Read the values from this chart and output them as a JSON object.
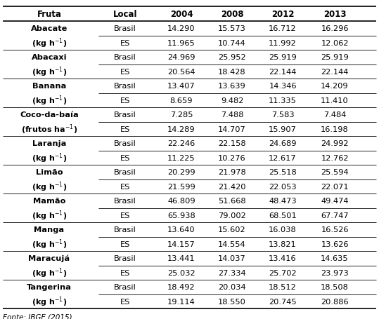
{
  "columns": [
    "Fruta",
    "Local",
    "2004",
    "2008",
    "2012",
    "2013"
  ],
  "fruits": [
    {
      "name": "Abacate",
      "unit": "(kg h-1)",
      "brasil": [
        "14.290",
        "15.573",
        "16.712",
        "16.296"
      ],
      "es": [
        "11.965",
        "10.744",
        "11.992",
        "12.062"
      ]
    },
    {
      "name": "Abacaxi",
      "unit": "(kg h-1)",
      "brasil": [
        "24.969",
        "25.952",
        "25.919",
        "25.919"
      ],
      "es": [
        "20.564",
        "18.428",
        "22.144",
        "22.144"
      ]
    },
    {
      "name": "Banana",
      "unit": "(kg h-1)",
      "brasil": [
        "13.407",
        "13.639",
        "14.346",
        "14.209"
      ],
      "es": [
        "8.659",
        "9.482",
        "11.335",
        "11.410"
      ]
    },
    {
      "name": "Coco-da-baía",
      "unit": "(frutos ha-1)",
      "brasil": [
        "7.285",
        "7.488",
        "7.583",
        "7.484"
      ],
      "es": [
        "14.289",
        "14.707",
        "15.907",
        "16.198"
      ]
    },
    {
      "name": "Laranja",
      "unit": "(kg h-1)",
      "brasil": [
        "22.246",
        "22.158",
        "24.689",
        "24.992"
      ],
      "es": [
        "11.225",
        "10.276",
        "12.617",
        "12.762"
      ]
    },
    {
      "name": "Limão",
      "unit": "(kg h-1)",
      "brasil": [
        "20.299",
        "21.978",
        "25.518",
        "25.594"
      ],
      "es": [
        "21.599",
        "21.420",
        "22.053",
        "22.071"
      ]
    },
    {
      "name": "Mamão",
      "unit": "(kg h-1)",
      "brasil": [
        "46.809",
        "51.668",
        "48.473",
        "49.474"
      ],
      "es": [
        "65.938",
        "79.002",
        "68.501",
        "67.747"
      ]
    },
    {
      "name": "Manga",
      "unit": "(kg h-1)",
      "brasil": [
        "13.640",
        "15.602",
        "16.038",
        "16.526"
      ],
      "es": [
        "14.157",
        "14.554",
        "13.821",
        "13.626"
      ]
    },
    {
      "name": "Maracujá",
      "unit": "(kg h-1)",
      "brasil": [
        "13.441",
        "14.037",
        "13.416",
        "14.635"
      ],
      "es": [
        "25.032",
        "27.334",
        "25.702",
        "23.973"
      ]
    },
    {
      "name": "Tangerina",
      "unit": "(kg h-1)",
      "brasil": [
        "18.492",
        "20.034",
        "18.512",
        "18.508"
      ],
      "es": [
        "19.114",
        "18.550",
        "20.745",
        "20.886"
      ]
    }
  ],
  "footer": "Fonte: IBGE (2015)",
  "bg_color": "#ffffff",
  "text_color": "#000000"
}
